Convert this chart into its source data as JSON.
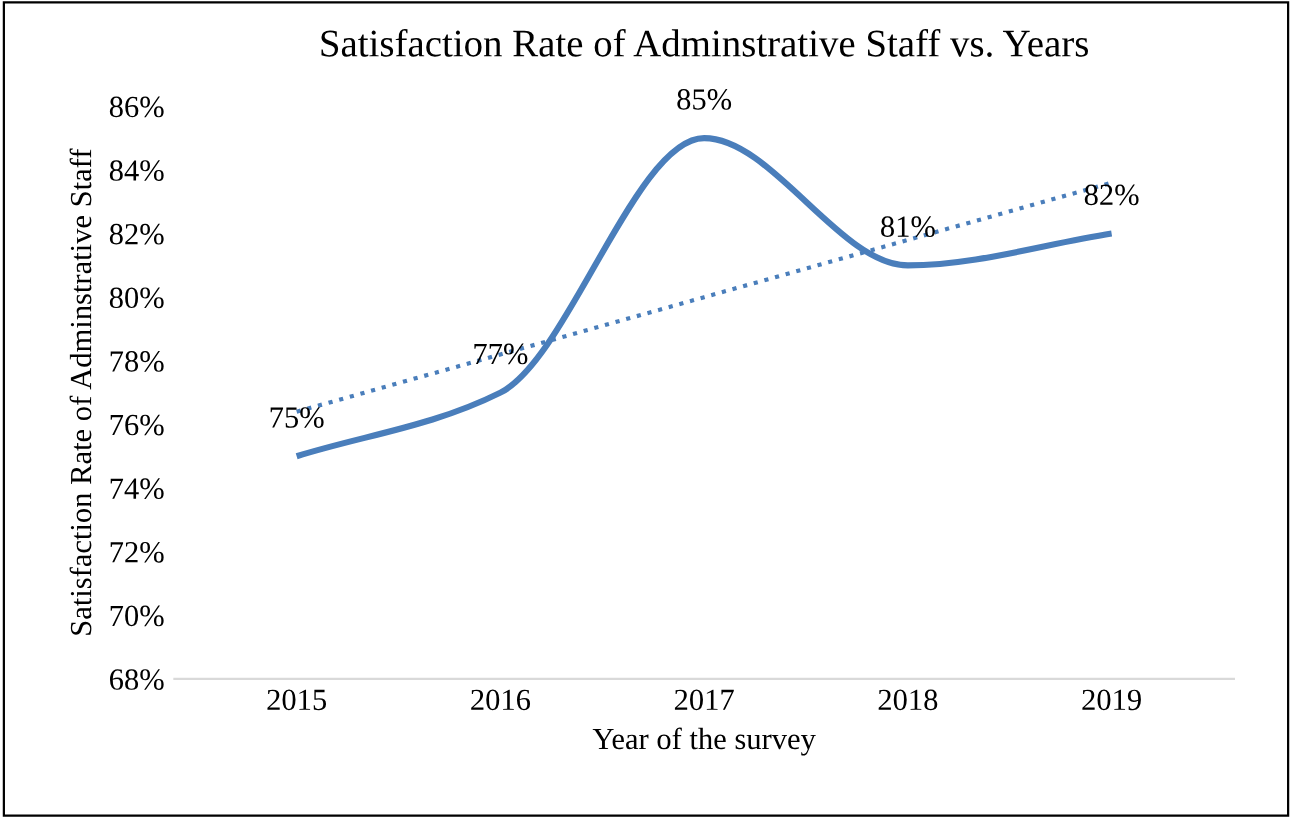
{
  "chart_data": {
    "type": "line",
    "title": "Satisfaction Rate of Adminstrative Staff vs. Years",
    "xlabel": "Year of the survey",
    "ylabel": "Satisfaction Rate of Adminstrative Staff",
    "categories": [
      "2015",
      "2016",
      "2017",
      "2018",
      "2019"
    ],
    "series": [
      {
        "color": "#4a7ebb",
        "values": [
          75,
          77,
          85,
          81,
          82
        ],
        "value_labels": [
          "75%",
          "77%",
          "85%",
          "81%",
          "82%"
        ],
        "line_style": "solid"
      },
      {
        "type": "line",
        "color": "#4a7ebb",
        "values": [
          76.4,
          78.2,
          80,
          81.8,
          83.6
        ],
        "line_style": "dotted"
      }
    ],
    "ylim": [
      68,
      86
    ],
    "yticks": [
      {
        "value": 68,
        "label": "68%"
      },
      {
        "value": 70,
        "label": "70%"
      },
      {
        "value": 72,
        "label": "72%"
      },
      {
        "value": 74,
        "label": "74%"
      },
      {
        "value": 76,
        "label": "76%"
      },
      {
        "value": 78,
        "label": "78%"
      },
      {
        "value": 80,
        "label": "80%"
      },
      {
        "value": 82,
        "label": "82%"
      },
      {
        "value": 84,
        "label": "84%"
      },
      {
        "value": 86,
        "label": "86%"
      }
    ],
    "grid": false,
    "legend": false,
    "marker": "none"
  }
}
